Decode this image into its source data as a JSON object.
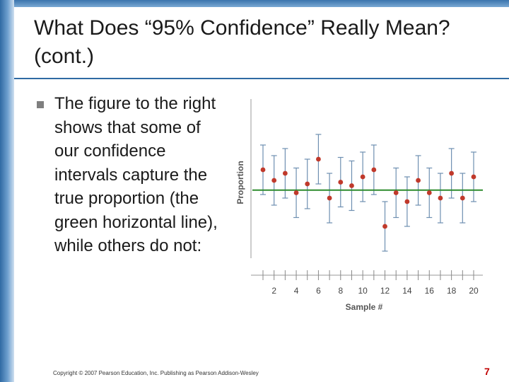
{
  "slide": {
    "title": "What Does “95% Confidence” Really Mean? (cont.)",
    "bullet": "The figure to the right shows that some of our confidence intervals capture the true proportion (the green horizontal line), while others do not:",
    "copyright": "Copyright © 2007 Pearson Education, Inc. Publishing as Pearson Addison-Wesley",
    "page_number": "7"
  },
  "colors": {
    "accent": "#2f6aa3",
    "point": "#c0392b",
    "interval": "#6e8fb1",
    "true_line": "#2e8b2e",
    "page_number": "#c00000"
  },
  "chart_data": {
    "type": "scatter",
    "title": "",
    "xlabel": "Sample #",
    "ylabel": "Proportion",
    "xlim": [
      1,
      20
    ],
    "ylim": [
      0,
      1
    ],
    "x_ticks": [
      2,
      4,
      6,
      8,
      10,
      12,
      14,
      16,
      18,
      20
    ],
    "true_proportion": 0.475,
    "samples": [
      1,
      2,
      3,
      4,
      5,
      6,
      7,
      8,
      9,
      10,
      11,
      12,
      13,
      14,
      15,
      16,
      17,
      18,
      19,
      20
    ],
    "estimates": [
      0.59,
      0.53,
      0.57,
      0.46,
      0.51,
      0.65,
      0.43,
      0.52,
      0.5,
      0.55,
      0.59,
      0.27,
      0.46,
      0.41,
      0.53,
      0.46,
      0.43,
      0.57,
      0.43,
      0.55
    ],
    "lower": [
      0.45,
      0.39,
      0.43,
      0.32,
      0.37,
      0.51,
      0.29,
      0.38,
      0.36,
      0.41,
      0.45,
      0.13,
      0.32,
      0.27,
      0.39,
      0.32,
      0.29,
      0.43,
      0.29,
      0.41
    ],
    "upper": [
      0.73,
      0.67,
      0.71,
      0.6,
      0.65,
      0.79,
      0.57,
      0.66,
      0.64,
      0.69,
      0.73,
      0.41,
      0.6,
      0.55,
      0.67,
      0.6,
      0.57,
      0.71,
      0.57,
      0.69
    ]
  }
}
